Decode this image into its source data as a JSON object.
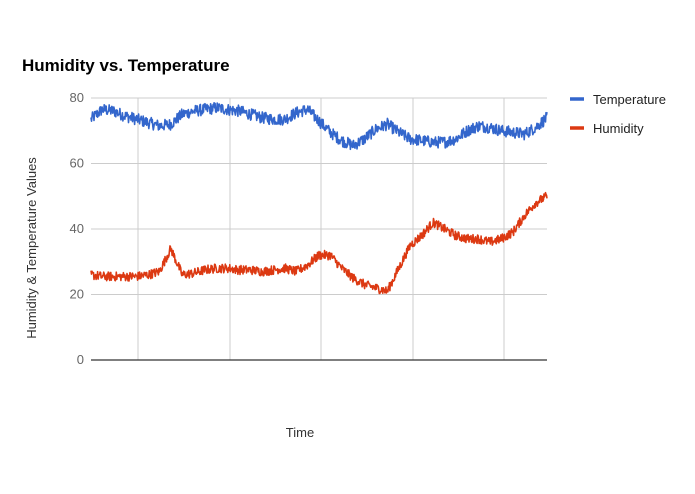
{
  "chart_data": {
    "type": "line",
    "title": "Humidity vs. Temperature",
    "xlabel": "Time",
    "ylabel": "Humidity & Temperature Values",
    "ylim": [
      0,
      80
    ],
    "yticks": [
      0,
      20,
      40,
      60,
      80
    ],
    "grid": true,
    "legend_position": "right",
    "x_points": 41,
    "series": [
      {
        "name": "Temperature",
        "color": "#3366cc",
        "noise": 1.8,
        "values": [
          73.5,
          76.5,
          76,
          74.5,
          73.5,
          72.5,
          71.5,
          72,
          75,
          76,
          76.5,
          77,
          76.5,
          76,
          75,
          74,
          73.5,
          73.5,
          75.5,
          76.5,
          73,
          69.5,
          67,
          65.5,
          67.5,
          70.5,
          72,
          69.5,
          67.5,
          67,
          66.5,
          66.5,
          67.5,
          70,
          71.5,
          71,
          70,
          69.5,
          69,
          71,
          74
        ]
      },
      {
        "name": "Humidity",
        "color": "#dc3912",
        "noise": 1.4,
        "values": [
          26,
          25.5,
          25.5,
          25.5,
          25.5,
          26,
          27,
          34,
          26,
          26.5,
          27.5,
          28,
          28,
          27.5,
          27.5,
          27,
          27.5,
          28,
          27,
          29,
          32,
          32,
          28,
          25,
          23,
          22,
          21,
          28,
          35,
          38,
          42,
          40,
          38,
          37,
          37,
          36,
          37,
          39,
          44,
          48,
          50
        ]
      }
    ]
  }
}
